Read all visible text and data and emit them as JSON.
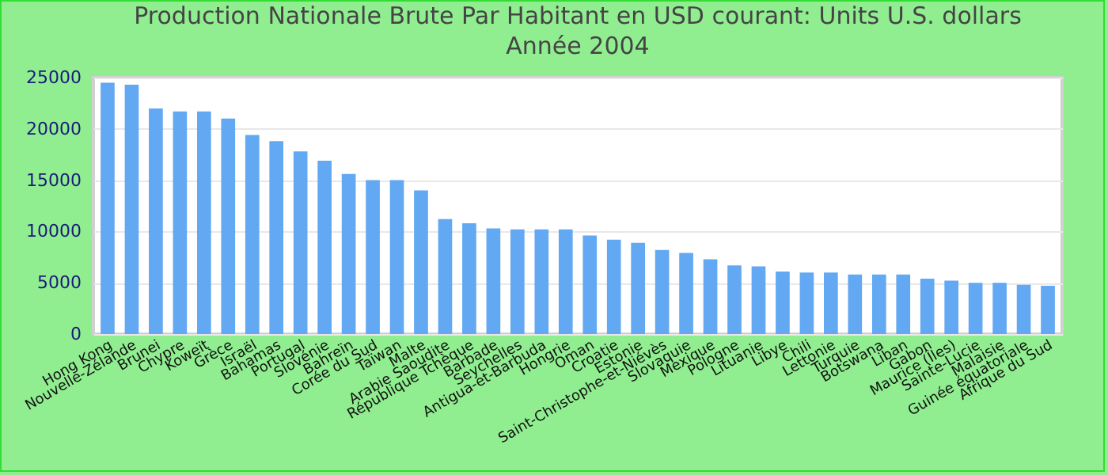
{
  "chart_data": {
    "type": "bar",
    "title": "Production Nationale Brute Par Habitant en USD courant: Units U.S. dollars",
    "subtitle": "Année 2004",
    "categories": [
      "Hong Kong",
      "Nouvelle-Zélande",
      "Brunei",
      "Chypre",
      "Koweït",
      "Grèce",
      "Israël",
      "Bahamas",
      "Portugal",
      "Slovénie",
      "Bahreïn",
      "Corée du Sud",
      "Taïwan",
      "Malte",
      "Arabie Saoudite",
      "République Tchèque",
      "Barbade",
      "Seychelles",
      "Antigua-et-Barbuda",
      "Hongrie",
      "Oman",
      "Croatie",
      "Estonie",
      "Saint-Christophe-et-Niévès",
      "Slovaquie",
      "Mexique",
      "Pologne",
      "Lituanie",
      "Libye",
      "Chili",
      "Lettonie",
      "Turquie",
      "Botswana",
      "Liban",
      "Gabon",
      "Maurice (Îles)",
      "Sainte-Lucie",
      "Malaisie",
      "Guinée équatoriale",
      "Afrique du Sud"
    ],
    "values": [
      24500,
      24300,
      22000,
      21700,
      21700,
      21000,
      19400,
      18800,
      17800,
      16900,
      15600,
      15000,
      15000,
      14000,
      11200,
      10800,
      10300,
      10200,
      10200,
      10200,
      9600,
      9200,
      8900,
      8200,
      7900,
      7300,
      6700,
      6600,
      6100,
      6000,
      6000,
      5800,
      5800,
      5800,
      5400,
      5200,
      5000,
      5000,
      4800,
      4700
    ],
    "color": "#62a8f2",
    "ylim": [
      0,
      25000
    ],
    "yticks": [
      0,
      5000,
      10000,
      15000,
      20000,
      25000
    ],
    "grid": "y"
  }
}
